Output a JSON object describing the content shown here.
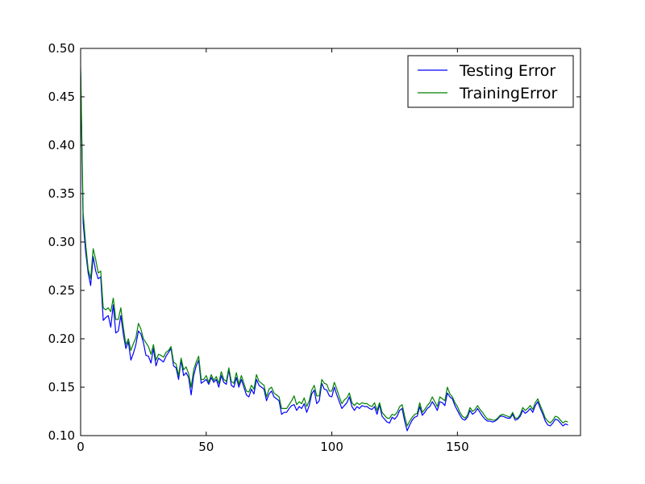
{
  "chart_data": {
    "type": "line",
    "title": "",
    "xlabel": "",
    "ylabel": "",
    "xlim": [
      0,
      199
    ],
    "ylim": [
      0.1,
      0.5
    ],
    "xticks": [
      0,
      50,
      100,
      150
    ],
    "xtick_labels": [
      "0",
      "50",
      "100",
      "150"
    ],
    "yticks": [
      0.1,
      0.15,
      0.2,
      0.25,
      0.3,
      0.35,
      0.4,
      0.45,
      0.5
    ],
    "ytick_labels": [
      "0.10",
      "0.15",
      "0.20",
      "0.25",
      "0.30",
      "0.35",
      "0.40",
      "0.45",
      "0.50"
    ],
    "grid": false,
    "legend_position": "top-right",
    "series": [
      {
        "name": "Testing Error",
        "color": "#0000ff",
        "values": [
          0.475,
          0.32,
          0.29,
          0.268,
          0.255,
          0.285,
          0.27,
          0.262,
          0.264,
          0.219,
          0.222,
          0.224,
          0.212,
          0.235,
          0.206,
          0.208,
          0.224,
          0.205,
          0.19,
          0.197,
          0.178,
          0.185,
          0.194,
          0.208,
          0.205,
          0.196,
          0.183,
          0.182,
          0.175,
          0.19,
          0.172,
          0.18,
          0.178,
          0.176,
          0.182,
          0.186,
          0.19,
          0.172,
          0.17,
          0.158,
          0.178,
          0.162,
          0.165,
          0.16,
          0.142,
          0.162,
          0.172,
          0.178,
          0.154,
          0.156,
          0.158,
          0.153,
          0.16,
          0.155,
          0.158,
          0.15,
          0.162,
          0.155,
          0.153,
          0.168,
          0.152,
          0.15,
          0.16,
          0.15,
          0.158,
          0.15,
          0.142,
          0.14,
          0.148,
          0.143,
          0.158,
          0.152,
          0.15,
          0.148,
          0.136,
          0.143,
          0.146,
          0.14,
          0.138,
          0.136,
          0.122,
          0.124,
          0.124,
          0.128,
          0.131,
          0.132,
          0.126,
          0.13,
          0.128,
          0.133,
          0.124,
          0.131,
          0.143,
          0.147,
          0.133,
          0.136,
          0.154,
          0.148,
          0.147,
          0.141,
          0.14,
          0.15,
          0.142,
          0.135,
          0.128,
          0.131,
          0.134,
          0.14,
          0.13,
          0.126,
          0.13,
          0.128,
          0.131,
          0.13,
          0.13,
          0.128,
          0.127,
          0.13,
          0.122,
          0.132,
          0.12,
          0.117,
          0.114,
          0.113,
          0.119,
          0.117,
          0.12,
          0.126,
          0.128,
          0.115,
          0.105,
          0.111,
          0.116,
          0.119,
          0.12,
          0.13,
          0.121,
          0.124,
          0.128,
          0.13,
          0.135,
          0.131,
          0.126,
          0.135,
          0.134,
          0.131,
          0.144,
          0.14,
          0.138,
          0.131,
          0.126,
          0.121,
          0.117,
          0.116,
          0.119,
          0.126,
          0.122,
          0.124,
          0.128,
          0.124,
          0.12,
          0.117,
          0.115,
          0.115,
          0.114,
          0.115,
          0.117,
          0.12,
          0.12,
          0.119,
          0.118,
          0.118,
          0.122,
          0.116,
          0.117,
          0.12,
          0.126,
          0.123,
          0.125,
          0.128,
          0.124,
          0.131,
          0.135,
          0.128,
          0.122,
          0.115,
          0.111,
          0.11,
          0.113,
          0.117,
          0.116,
          0.113,
          0.11,
          0.112,
          0.111
        ]
      },
      {
        "name": "TrainingError",
        "color": "#008000",
        "values": [
          0.48,
          0.33,
          0.298,
          0.272,
          0.262,
          0.293,
          0.282,
          0.268,
          0.27,
          0.232,
          0.23,
          0.232,
          0.228,
          0.242,
          0.22,
          0.22,
          0.232,
          0.212,
          0.194,
          0.2,
          0.188,
          0.195,
          0.201,
          0.216,
          0.21,
          0.2,
          0.196,
          0.192,
          0.184,
          0.194,
          0.178,
          0.184,
          0.183,
          0.181,
          0.186,
          0.188,
          0.192,
          0.176,
          0.174,
          0.162,
          0.18,
          0.168,
          0.171,
          0.164,
          0.15,
          0.168,
          0.176,
          0.182,
          0.158,
          0.158,
          0.162,
          0.155,
          0.163,
          0.157,
          0.161,
          0.154,
          0.166,
          0.158,
          0.156,
          0.17,
          0.156,
          0.154,
          0.165,
          0.153,
          0.162,
          0.154,
          0.146,
          0.145,
          0.152,
          0.148,
          0.163,
          0.156,
          0.154,
          0.152,
          0.14,
          0.148,
          0.15,
          0.144,
          0.142,
          0.14,
          0.128,
          0.128,
          0.128,
          0.132,
          0.136,
          0.141,
          0.132,
          0.135,
          0.133,
          0.139,
          0.13,
          0.136,
          0.147,
          0.152,
          0.141,
          0.141,
          0.158,
          0.154,
          0.153,
          0.146,
          0.146,
          0.155,
          0.148,
          0.14,
          0.133,
          0.137,
          0.139,
          0.144,
          0.134,
          0.131,
          0.134,
          0.132,
          0.134,
          0.133,
          0.133,
          0.131,
          0.13,
          0.134,
          0.126,
          0.134,
          0.124,
          0.121,
          0.118,
          0.118,
          0.122,
          0.121,
          0.124,
          0.13,
          0.132,
          0.12,
          0.11,
          0.115,
          0.119,
          0.122,
          0.123,
          0.134,
          0.124,
          0.127,
          0.131,
          0.134,
          0.14,
          0.135,
          0.13,
          0.14,
          0.138,
          0.136,
          0.15,
          0.143,
          0.14,
          0.134,
          0.13,
          0.124,
          0.12,
          0.118,
          0.121,
          0.129,
          0.125,
          0.127,
          0.131,
          0.127,
          0.124,
          0.12,
          0.117,
          0.117,
          0.116,
          0.116,
          0.118,
          0.121,
          0.122,
          0.121,
          0.12,
          0.119,
          0.124,
          0.118,
          0.118,
          0.122,
          0.129,
          0.126,
          0.128,
          0.131,
          0.127,
          0.134,
          0.138,
          0.131,
          0.125,
          0.118,
          0.115,
          0.113,
          0.116,
          0.12,
          0.119,
          0.116,
          0.113,
          0.115,
          0.114
        ]
      }
    ]
  }
}
